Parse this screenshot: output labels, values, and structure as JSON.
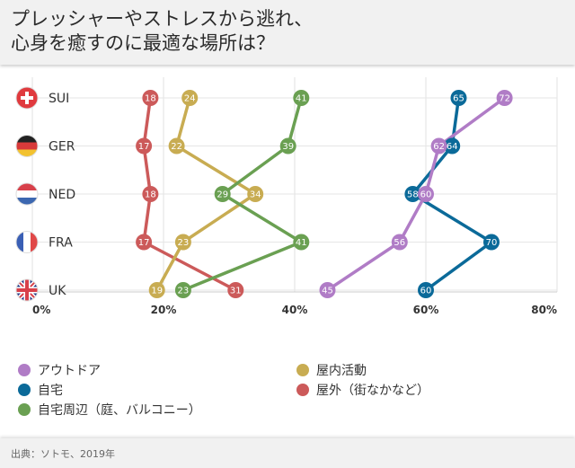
{
  "title": "プレッシャーやストレスから逃れ、\n心身を癒すのに最適な場所は？",
  "source": "出典：ソトモ、2019年",
  "colors": {
    "outdoor": "#b07cc6",
    "home": "#0b6a99",
    "home_surroundings": "#6aa052",
    "indoor": "#c8ac52",
    "outside": "#cc5a5a"
  },
  "chart_data": {
    "type": "scatter",
    "categories": [
      "SUI",
      "GER",
      "NED",
      "FRA",
      "UK"
    ],
    "xlim": [
      0,
      80
    ],
    "x_ticks": [
      "0%",
      "20%",
      "40%",
      "60%",
      "80%"
    ],
    "grid": true,
    "legend_position": "bottom",
    "series": [
      {
        "key": "outside",
        "name": "屋外（街なかなど）",
        "values": [
          18,
          17,
          18,
          17,
          31
        ]
      },
      {
        "key": "indoor",
        "name": "屋内活動",
        "values": [
          24,
          22,
          34,
          23,
          19
        ]
      },
      {
        "key": "home_surroundings",
        "name": "自宅周辺（庭、バルコニー）",
        "values": [
          41,
          39,
          29,
          41,
          23
        ]
      },
      {
        "key": "home",
        "name": "自宅",
        "values": [
          65,
          64,
          58,
          70,
          60
        ]
      },
      {
        "key": "outdoor",
        "name": "アウトドア",
        "values": [
          72,
          62,
          60,
          56,
          45
        ]
      }
    ]
  },
  "legend": [
    {
      "key": "outdoor",
      "label": "アウトドア"
    },
    {
      "key": "home",
      "label": "自宅"
    },
    {
      "key": "home_surroundings",
      "label": "自宅周辺（庭、バルコニー）"
    },
    {
      "key": "indoor",
      "label": "屋内活動"
    },
    {
      "key": "outside",
      "label": "屋外（街なかなど）"
    }
  ]
}
